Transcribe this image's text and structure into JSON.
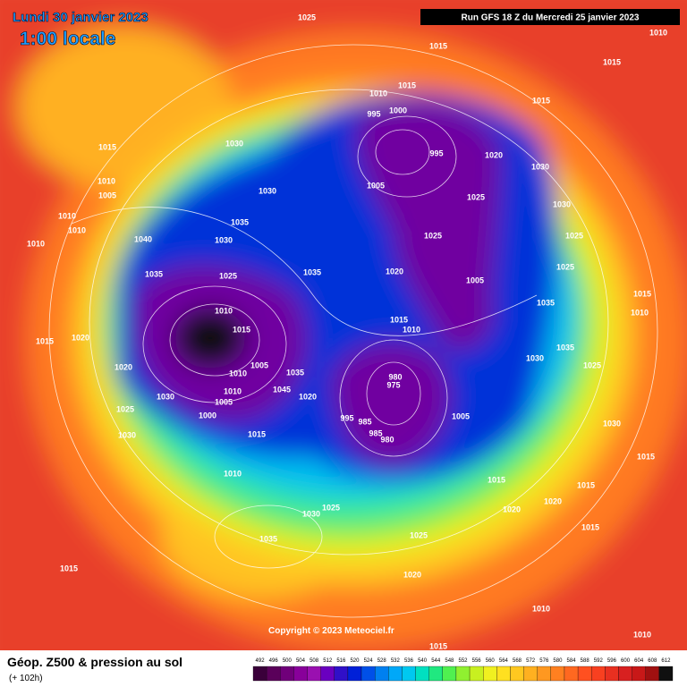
{
  "header": {
    "date": "Lundi 30 janvier 2023",
    "time": "1:00 locale",
    "run": "Run GFS 18 Z du Mercredi 25 janvier 2023"
  },
  "footer": {
    "title": "Géop. Z500 & pression au sol",
    "lead": "(+ 102h)",
    "copyright": "Copyright © 2023 Meteociel.fr"
  },
  "scale": {
    "values": [
      492,
      496,
      500,
      504,
      508,
      512,
      516,
      520,
      524,
      528,
      532,
      536,
      540,
      544,
      548,
      552,
      556,
      560,
      564,
      568,
      572,
      576,
      580,
      584,
      588,
      592,
      596,
      600,
      604,
      608,
      612
    ],
    "colors": [
      "#3a003a",
      "#5a005a",
      "#70007a",
      "#88009a",
      "#9a10b0",
      "#6a00c0",
      "#3010c8",
      "#0020d8",
      "#0050e8",
      "#0080f0",
      "#00a8f8",
      "#00c8f0",
      "#00e0c0",
      "#20e880",
      "#50f050",
      "#90f030",
      "#c8f020",
      "#f0f020",
      "#ffe020",
      "#ffc820",
      "#ffb020",
      "#ff9820",
      "#ff8020",
      "#ff6820",
      "#ff5020",
      "#f84020",
      "#e83020",
      "#d82020",
      "#c81818",
      "#a01010",
      "#101010"
    ]
  },
  "isobars": [
    1025,
    1015,
    1010,
    1015,
    1015,
    1010,
    1000,
    995,
    1015,
    1015,
    1030,
    995,
    1020,
    1030,
    1010,
    1005,
    1005,
    1025,
    1030,
    1030,
    1010,
    1035,
    1010,
    1025,
    1040,
    1030,
    1010,
    1025,
    1025,
    1035,
    1025,
    1035,
    1020,
    1005,
    1035,
    1015,
    1010,
    1010,
    1015,
    1015,
    1010,
    1015,
    1020,
    1035,
    1030,
    1020,
    1025,
    1005,
    1035,
    1010,
    980,
    975,
    1030,
    1010,
    1045,
    1020,
    1005,
    1025,
    1005,
    995,
    985,
    1000,
    1030,
    985,
    1030,
    1015,
    980,
    1015,
    1010,
    1015,
    1015,
    1020,
    1020,
    1025,
    1030,
    1035,
    1025,
    1015,
    1015,
    1020,
    1010,
    1010,
    1015
  ]
}
